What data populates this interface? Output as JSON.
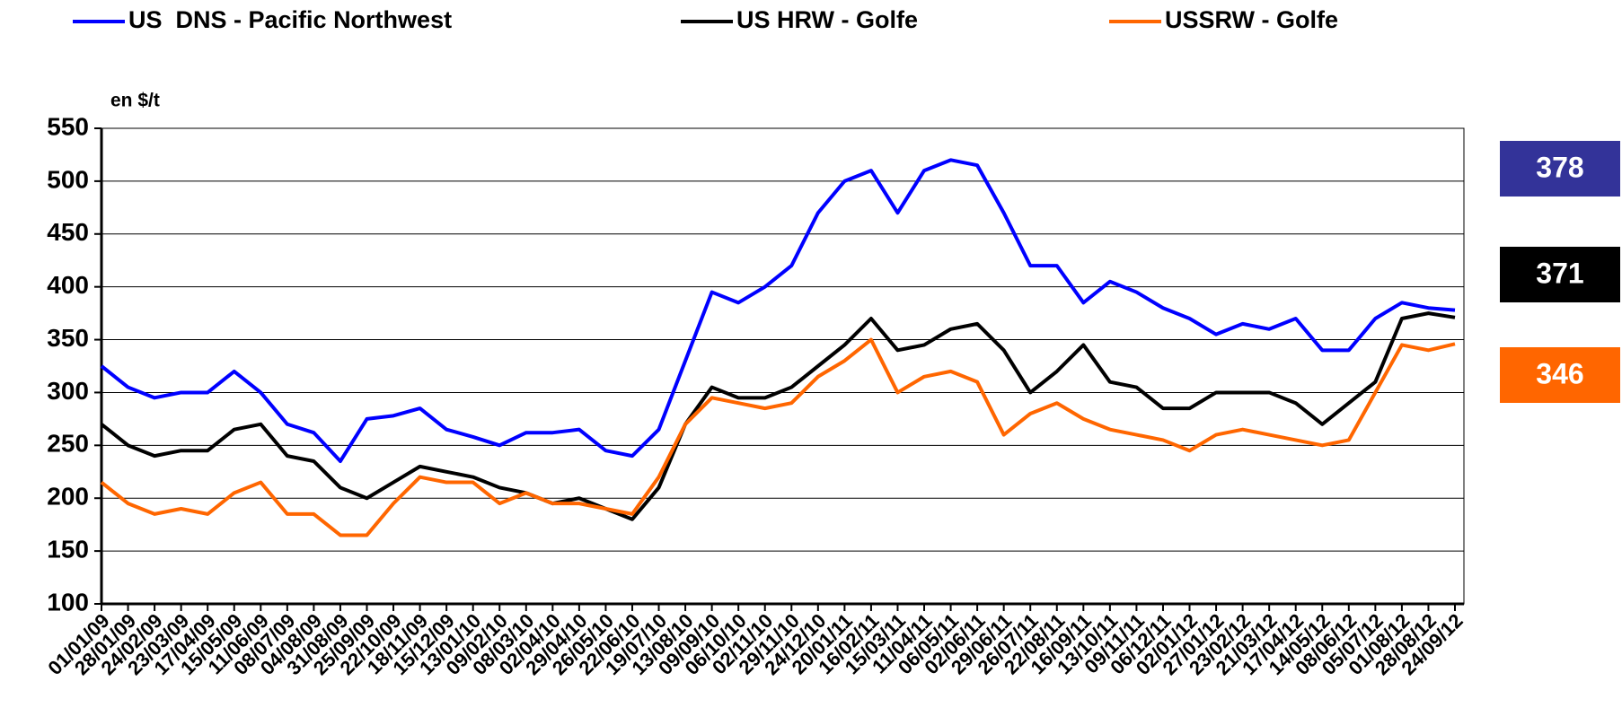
{
  "chart_data": {
    "type": "line",
    "y_axis_label": "en $/t",
    "categories": [
      "01/01/09",
      "28/01/09",
      "24/02/09",
      "23/03/09",
      "17/04/09",
      "15/05/09",
      "11/06/09",
      "08/07/09",
      "04/08/09",
      "31/08/09",
      "25/09/09",
      "22/10/09",
      "18/11/09",
      "15/12/09",
      "13/01/10",
      "09/02/10",
      "08/03/10",
      "02/04/10",
      "29/04/10",
      "26/05/10",
      "22/06/10",
      "19/07/10",
      "13/08/10",
      "09/09/10",
      "06/10/10",
      "02/11/10",
      "29/11/10",
      "24/12/10",
      "20/01/11",
      "16/02/11",
      "15/03/11",
      "11/04/11",
      "06/05/11",
      "02/06/11",
      "29/06/11",
      "26/07/11",
      "22/08/11",
      "16/09/11",
      "13/10/11",
      "09/11/11",
      "06/12/11",
      "02/01/12",
      "27/01/12",
      "23/02/12",
      "21/03/12",
      "17/04/12",
      "14/05/12",
      "08/06/12",
      "05/07/12",
      "01/08/12",
      "28/08/12",
      "24/09/12"
    ],
    "series": [
      {
        "name": "US  DNS - Pacific Northwest",
        "color": "#0000ff",
        "label_color": "#333399",
        "end_value": 378,
        "values": [
          325,
          305,
          295,
          300,
          300,
          320,
          300,
          270,
          262,
          235,
          275,
          278,
          285,
          265,
          258,
          250,
          262,
          262,
          265,
          245,
          240,
          265,
          330,
          395,
          385,
          400,
          420,
          470,
          500,
          510,
          470,
          510,
          520,
          515,
          470,
          420,
          420,
          385,
          405,
          395,
          380,
          370,
          355,
          365,
          360,
          370,
          340,
          340,
          370,
          385,
          380,
          378
        ]
      },
      {
        "name": "US HRW - Golfe",
        "color": "#000000",
        "label_color": "#000000",
        "end_value": 371,
        "values": [
          270,
          250,
          240,
          245,
          245,
          265,
          270,
          240,
          235,
          210,
          200,
          215,
          230,
          225,
          220,
          210,
          205,
          195,
          200,
          190,
          180,
          210,
          270,
          305,
          295,
          295,
          305,
          325,
          345,
          370,
          340,
          345,
          360,
          365,
          340,
          300,
          320,
          345,
          310,
          305,
          285,
          285,
          300,
          300,
          300,
          290,
          270,
          290,
          310,
          370,
          375,
          371
        ]
      },
      {
        "name": "USSRW - Golfe",
        "color": "#ff6600",
        "label_color": "#ff6600",
        "end_value": 346,
        "values": [
          215,
          195,
          185,
          190,
          185,
          205,
          215,
          185,
          185,
          165,
          165,
          195,
          220,
          215,
          215,
          195,
          205,
          195,
          195,
          190,
          185,
          220,
          270,
          295,
          290,
          285,
          290,
          315,
          330,
          350,
          300,
          315,
          320,
          310,
          260,
          280,
          290,
          275,
          265,
          260,
          255,
          245,
          260,
          265,
          260,
          255,
          250,
          255,
          300,
          345,
          340,
          346
        ]
      }
    ],
    "ylim": [
      100,
      550
    ],
    "yticks": [
      100,
      150,
      200,
      250,
      300,
      350,
      400,
      450,
      500,
      550
    ],
    "grid": true,
    "legend": "top"
  }
}
